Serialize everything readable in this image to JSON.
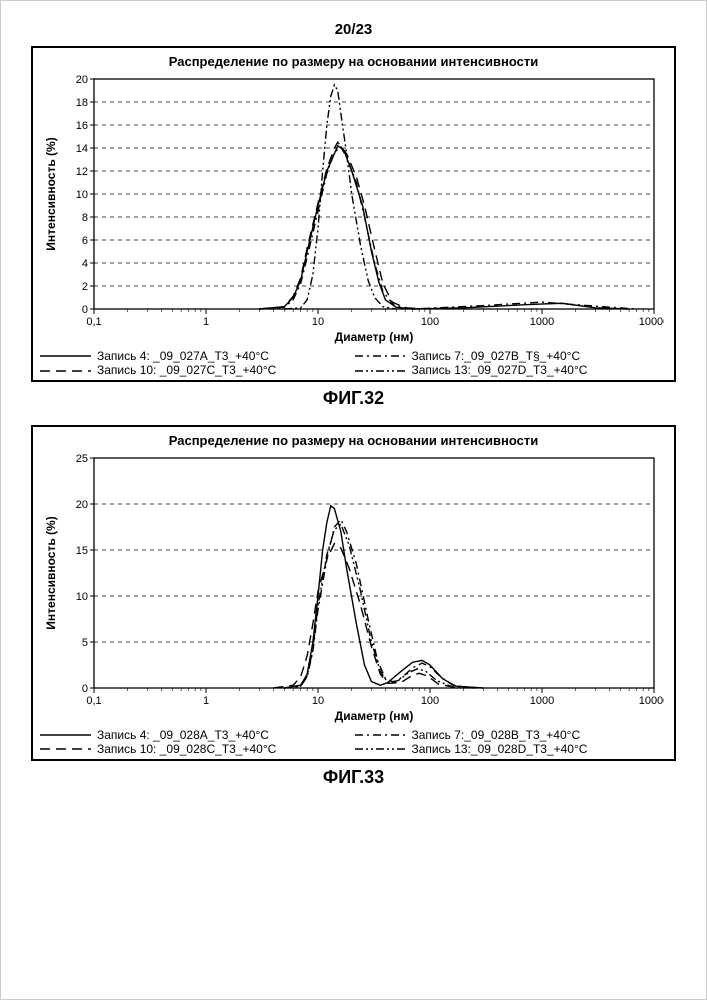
{
  "page_number": "20/23",
  "figures": [
    {
      "label": "ФИГ.32",
      "chart": {
        "type": "line",
        "title": "Распределение по размеру на основании интенсивности",
        "xlabel": "Диаметр (нм)",
        "ylabel": "Интенсивность (%)",
        "background_color": "#ffffff",
        "axis_color": "#000000",
        "grid_color": "#000000",
        "grid_dash": "4 4",
        "x_scale": "log",
        "xlim": [
          0.1,
          10000
        ],
        "xticks": [
          0.1,
          1,
          10,
          100,
          1000,
          10000
        ],
        "xtick_labels": [
          "0,1",
          "1",
          "10",
          "100",
          "1000",
          "10000"
        ],
        "ylim": [
          0,
          20
        ],
        "yticks": [
          0,
          2,
          4,
          6,
          8,
          10,
          12,
          14,
          16,
          18,
          20
        ],
        "line_width": 1.4,
        "label_fontsize": 12,
        "tick_fontsize": 11,
        "series": [
          {
            "name": "Запись 4: _09_027A_T3_+40°C",
            "color": "#000000",
            "dash": "none",
            "points": [
              [
                3,
                0
              ],
              [
                5,
                0.2
              ],
              [
                6,
                1
              ],
              [
                7,
                2.5
              ],
              [
                8,
                5
              ],
              [
                10,
                9
              ],
              [
                12,
                12
              ],
              [
                14,
                13.5
              ],
              [
                15,
                14.2
              ],
              [
                17,
                13.8
              ],
              [
                20,
                12
              ],
              [
                25,
                9
              ],
              [
                30,
                5
              ],
              [
                35,
                2.3
              ],
              [
                40,
                0.8
              ],
              [
                50,
                0.15
              ],
              [
                70,
                0
              ],
              [
                200,
                0.1
              ],
              [
                800,
                0.4
              ],
              [
                1500,
                0.5
              ],
              [
                3000,
                0.1
              ],
              [
                6000,
                0
              ]
            ]
          },
          {
            "name": "Запись 7:_09_027B_T§_+40°C",
            "color": "#000000",
            "dash": "8 4 2 4",
            "points": [
              [
                3,
                0
              ],
              [
                5,
                0.15
              ],
              [
                6,
                0.8
              ],
              [
                7,
                2.2
              ],
              [
                8,
                4.5
              ],
              [
                10,
                8.5
              ],
              [
                12,
                11.8
              ],
              [
                14,
                13.6
              ],
              [
                16,
                14.1
              ],
              [
                18,
                13.2
              ],
              [
                22,
                11
              ],
              [
                26,
                8
              ],
              [
                32,
                4
              ],
              [
                38,
                1.5
              ],
              [
                48,
                0.3
              ],
              [
                70,
                0
              ],
              [
                300,
                0.3
              ],
              [
                1000,
                0.6
              ],
              [
                3500,
                0.2
              ],
              [
                7000,
                0
              ]
            ]
          },
          {
            "name": "Запись 10: _09_027C_T3_+40°C",
            "color": "#000000",
            "dash": "10 6",
            "points": [
              [
                3,
                0
              ],
              [
                5,
                0.2
              ],
              [
                6,
                1.1
              ],
              [
                7,
                2.7
              ],
              [
                8,
                5.3
              ],
              [
                10,
                9.2
              ],
              [
                12,
                12.2
              ],
              [
                14,
                14
              ],
              [
                15,
                14.5
              ],
              [
                18,
                13.5
              ],
              [
                22,
                11.5
              ],
              [
                26,
                9
              ],
              [
                32,
                5.2
              ],
              [
                38,
                2.2
              ],
              [
                46,
                0.6
              ],
              [
                60,
                0.1
              ],
              [
                100,
                0
              ]
            ]
          },
          {
            "name": "Запись 13:_09_027D_T3_+40°C",
            "color": "#000000",
            "dash": "8 3 2 3 2 3",
            "points": [
              [
                5,
                0
              ],
              [
                7,
                0.1
              ],
              [
                8,
                0.8
              ],
              [
                9,
                3
              ],
              [
                10,
                7
              ],
              [
                11,
                12
              ],
              [
                12,
                16
              ],
              [
                13,
                18.5
              ],
              [
                14,
                19.5
              ],
              [
                15,
                19
              ],
              [
                16,
                17
              ],
              [
                18,
                13.5
              ],
              [
                20,
                10
              ],
              [
                24,
                5.5
              ],
              [
                28,
                2.5
              ],
              [
                32,
                1
              ],
              [
                38,
                0.2
              ],
              [
                50,
                0
              ]
            ]
          }
        ]
      }
    },
    {
      "label": "ФИГ.33",
      "chart": {
        "type": "line",
        "title": "Распределение по размеру на основании интенсивности",
        "xlabel": "Диаметр (нм)",
        "ylabel": "Интенсивность (%)",
        "background_color": "#ffffff",
        "axis_color": "#000000",
        "grid_color": "#000000",
        "grid_dash": "4 4",
        "x_scale": "log",
        "xlim": [
          0.1,
          10000
        ],
        "xticks": [
          0.1,
          1,
          10,
          100,
          1000,
          10000
        ],
        "xtick_labels": [
          "0,1",
          "1",
          "10",
          "100",
          "1000",
          "10000"
        ],
        "ylim": [
          0,
          25
        ],
        "yticks": [
          0,
          5,
          10,
          15,
          20,
          25
        ],
        "line_width": 1.4,
        "label_fontsize": 12,
        "tick_fontsize": 11,
        "series": [
          {
            "name": "Запись 4: _09_028A_T3_+40°C",
            "color": "#000000",
            "dash": "none",
            "points": [
              [
                5,
                0
              ],
              [
                7,
                0.3
              ],
              [
                8,
                1.5
              ],
              [
                9,
                5
              ],
              [
                10,
                10
              ],
              [
                11,
                15
              ],
              [
                12,
                18
              ],
              [
                13,
                19.8
              ],
              [
                14,
                19.5
              ],
              [
                16,
                17
              ],
              [
                18,
                13
              ],
              [
                22,
                7
              ],
              [
                26,
                2.5
              ],
              [
                30,
                0.7
              ],
              [
                36,
                0.3
              ],
              [
                42,
                0.6
              ],
              [
                55,
                1.8
              ],
              [
                70,
                2.8
              ],
              [
                85,
                3
              ],
              [
                100,
                2.5
              ],
              [
                130,
                1
              ],
              [
                170,
                0.2
              ],
              [
                300,
                0
              ]
            ]
          },
          {
            "name": "Запись 7:_09_028B_T3_+40°C",
            "color": "#000000",
            "dash": "8 4 2 4",
            "points": [
              [
                5,
                0
              ],
              [
                7,
                0.2
              ],
              [
                8,
                1.2
              ],
              [
                9,
                4
              ],
              [
                10,
                8.5
              ],
              [
                12,
                14
              ],
              [
                14,
                17.5
              ],
              [
                16,
                18.3
              ],
              [
                18,
                17
              ],
              [
                22,
                13.5
              ],
              [
                28,
                7.5
              ],
              [
                34,
                3
              ],
              [
                40,
                1
              ],
              [
                48,
                0.6
              ],
              [
                58,
                1.3
              ],
              [
                70,
                2.2
              ],
              [
                85,
                2.7
              ],
              [
                100,
                2.3
              ],
              [
                125,
                1.2
              ],
              [
                160,
                0.3
              ],
              [
                250,
                0
              ]
            ]
          },
          {
            "name": "Запись 10: _09_028C_T3_+40°C",
            "color": "#000000",
            "dash": "10 6",
            "points": [
              [
                4,
                0
              ],
              [
                6,
                0.3
              ],
              [
                7,
                1.2
              ],
              [
                8,
                3.5
              ],
              [
                9,
                7
              ],
              [
                10,
                10.5
              ],
              [
                12,
                14
              ],
              [
                14,
                15.7
              ],
              [
                16,
                15.2
              ],
              [
                19,
                13
              ],
              [
                24,
                9
              ],
              [
                30,
                4.5
              ],
              [
                36,
                1.5
              ],
              [
                42,
                0.5
              ],
              [
                55,
                0.6
              ],
              [
                68,
                1.3
              ],
              [
                80,
                1.6
              ],
              [
                95,
                1.3
              ],
              [
                120,
                0.4
              ],
              [
                180,
                0
              ]
            ]
          },
          {
            "name": "Запись 13:_09_028D_T3_+40°C",
            "color": "#000000",
            "dash": "8 3 2 3 2 3",
            "points": [
              [
                5,
                0
              ],
              [
                7,
                0.2
              ],
              [
                8,
                1.3
              ],
              [
                9,
                4.2
              ],
              [
                10,
                9
              ],
              [
                12,
                14.5
              ],
              [
                14,
                17.2
              ],
              [
                16,
                17.8
              ],
              [
                19,
                15.5
              ],
              [
                24,
                10.5
              ],
              [
                30,
                5
              ],
              [
                36,
                1.8
              ],
              [
                42,
                0.6
              ],
              [
                52,
                0.8
              ],
              [
                65,
                1.7
              ],
              [
                78,
                2.1
              ],
              [
                92,
                1.8
              ],
              [
                115,
                0.8
              ],
              [
                160,
                0.1
              ],
              [
                250,
                0
              ]
            ]
          }
        ]
      }
    }
  ]
}
